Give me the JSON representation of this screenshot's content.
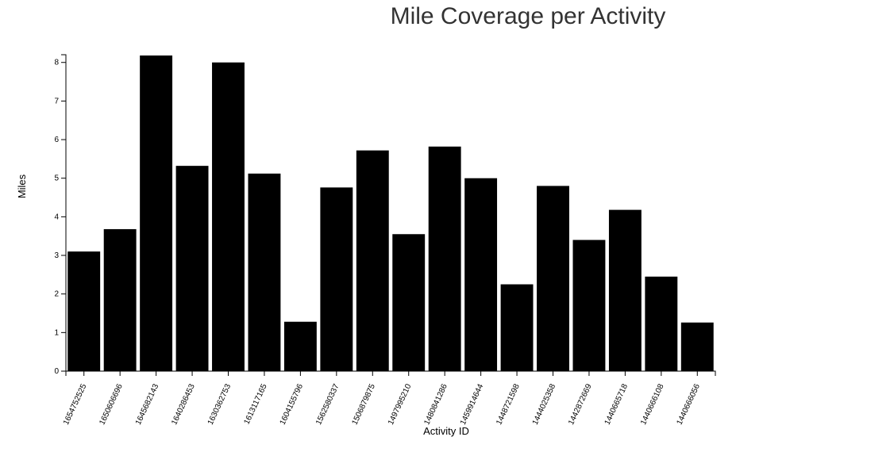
{
  "chart_data": {
    "type": "bar",
    "title": "Mile Coverage per Activity",
    "xlabel": "Activity ID",
    "ylabel": "Miles",
    "ylim": [
      0,
      8.2
    ],
    "yticks": [
      0,
      1,
      2,
      3,
      4,
      5,
      6,
      7,
      8
    ],
    "bar_color": "#000000",
    "categories": [
      "1654752525",
      "1650606696",
      "1645682143",
      "1640286453",
      "1630362753",
      "1613117165",
      "1604155796",
      "1562580337",
      "1506879875",
      "1497995210",
      "1480841286",
      "1459914644",
      "1448721598",
      "1444025358",
      "1442872669",
      "1440665718",
      "1440666108",
      "1440666056"
    ],
    "values": [
      3.1,
      3.68,
      8.18,
      5.32,
      8.0,
      5.12,
      1.28,
      4.76,
      5.72,
      3.55,
      5.82,
      5.0,
      2.25,
      4.8,
      3.4,
      4.18,
      2.45,
      1.26
    ]
  }
}
